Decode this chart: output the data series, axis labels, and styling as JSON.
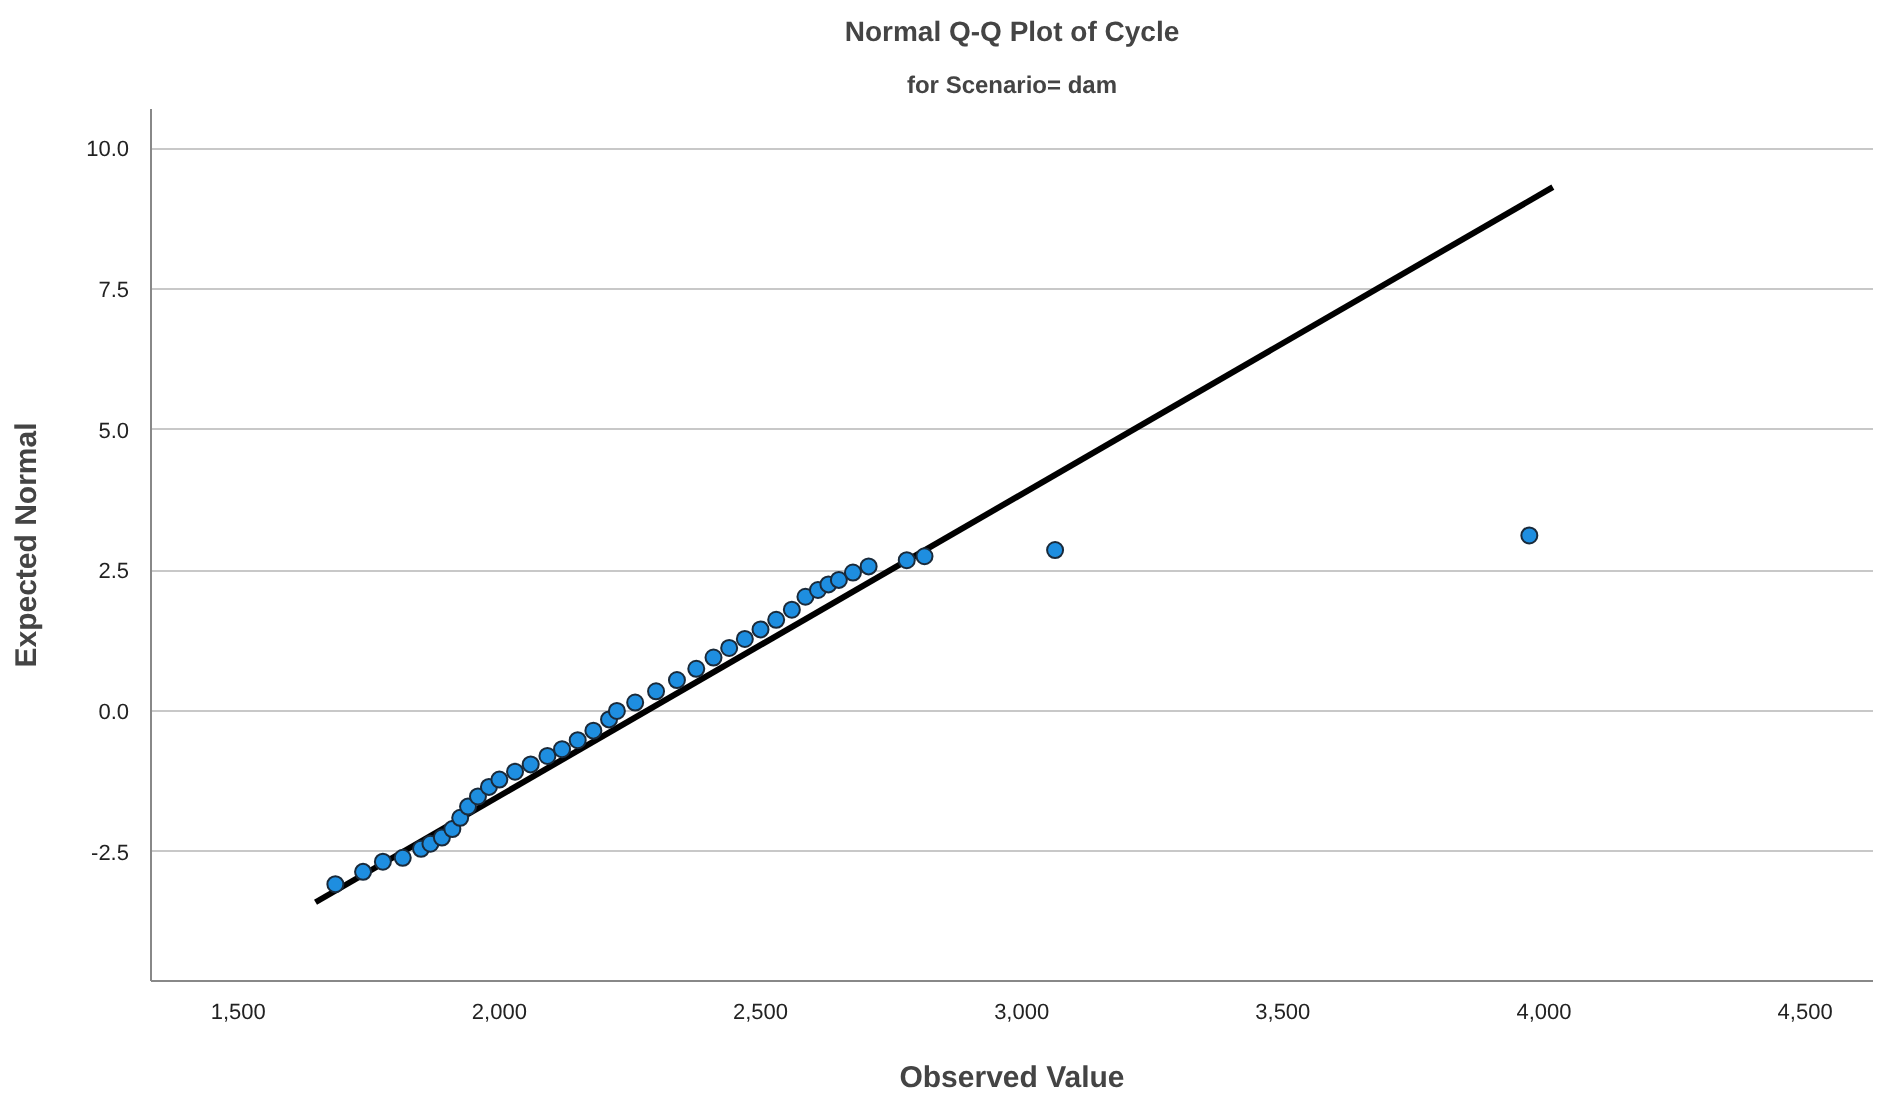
{
  "chart_data": {
    "type": "scatter",
    "title": "Normal Q-Q Plot of Cycle",
    "subtitle": "for Scenario= dam",
    "xlabel": "Observed Value",
    "ylabel": "Expected Normal",
    "xlim": [
      1333,
      4630
    ],
    "ylim": [
      -4.8,
      10.7
    ],
    "xticks": [
      {
        "value": 1500,
        "label": "1,500"
      },
      {
        "value": 2000,
        "label": "2,000"
      },
      {
        "value": 2500,
        "label": "2,500"
      },
      {
        "value": 3000,
        "label": "3,000"
      },
      {
        "value": 3500,
        "label": "3,500"
      },
      {
        "value": 4000,
        "label": "4,000"
      },
      {
        "value": 4500,
        "label": "4,500"
      }
    ],
    "yticks": [
      {
        "value": -2.5,
        "label": "-2.5"
      },
      {
        "value": 0,
        "label": "0.0"
      },
      {
        "value": 2.5,
        "label": "2.5"
      },
      {
        "value": 5,
        "label": "5.0"
      },
      {
        "value": 7.5,
        "label": "7.5"
      },
      {
        "value": 10,
        "label": "10.0"
      }
    ],
    "grid": "y",
    "series": [
      {
        "color": "#1e8ee0",
        "marker": "circle",
        "x": [
          1686,
          1739,
          1777,
          1815,
          1850,
          1868,
          1890,
          1910,
          1925,
          1940,
          1959,
          1980,
          2000,
          2030,
          2060,
          2092,
          2120,
          2150,
          2180,
          2210,
          2225,
          2260,
          2300,
          2340,
          2377,
          2410,
          2440,
          2470,
          2500,
          2530,
          2560,
          2586,
          2610,
          2630,
          2650,
          2677,
          2707,
          2780,
          2814,
          3064,
          3972
        ],
        "values": [
          -3.08,
          -2.86,
          -2.68,
          -2.61,
          -2.45,
          -2.36,
          -2.25,
          -2.1,
          -1.9,
          -1.7,
          -1.52,
          -1.35,
          -1.22,
          -1.08,
          -0.95,
          -0.8,
          -0.68,
          -0.52,
          -0.35,
          -0.15,
          0.0,
          0.15,
          0.35,
          0.55,
          0.75,
          0.95,
          1.12,
          1.28,
          1.45,
          1.62,
          1.8,
          2.03,
          2.15,
          2.25,
          2.33,
          2.46,
          2.57,
          2.68,
          2.75,
          2.86,
          3.12
        ]
      },
      {
        "type": "line",
        "color": "#000000",
        "line_style": "solid",
        "x": [
          1648,
          4017
        ],
        "values": [
          -3.4,
          9.31
        ]
      }
    ]
  }
}
